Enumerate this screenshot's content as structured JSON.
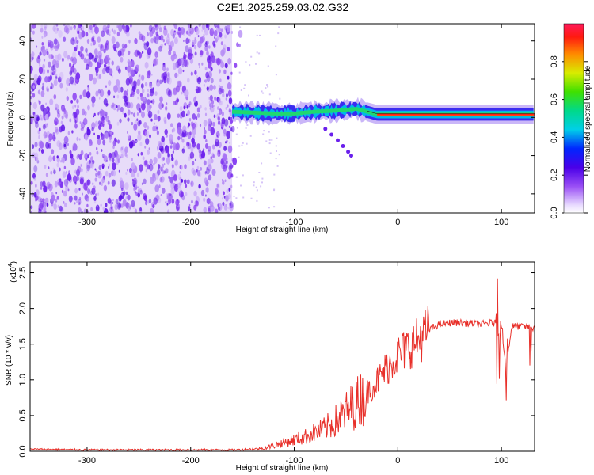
{
  "title": "C2E1.2025.259.03.02.G32",
  "chart_data": [
    {
      "type": "heatmap",
      "xlabel": "Height of straight line (km)",
      "ylabel": "Frequency (Hz)",
      "xlim": [
        -355,
        132
      ],
      "ylim": [
        -50,
        49
      ],
      "xticks": [
        -300,
        -200,
        -100,
        0,
        100
      ],
      "xtick_labels": [
        "-300",
        "-200",
        "-100",
        "0",
        "100"
      ],
      "yticks": [
        -40,
        -20,
        0,
        20,
        40
      ],
      "ytick_labels": [
        "-40",
        "-20",
        "0",
        "20",
        "40"
      ],
      "noise_region_x": [
        -355,
        -160
      ],
      "signal_track": {
        "x": [
          -160,
          -140,
          -120,
          -100,
          -80,
          -60,
          -40,
          -30,
          -20,
          0,
          20,
          40,
          60,
          80,
          100,
          120,
          132
        ],
        "freq": [
          3,
          2.5,
          2.0,
          2.0,
          3.0,
          3.5,
          4.5,
          3.0,
          1.5,
          1.5,
          1.5,
          1.5,
          1.5,
          1.5,
          1.5,
          1.5,
          1.5
        ]
      },
      "colorbar": {
        "label": "Normalized spectral amplitude",
        "range": [
          0,
          1
        ],
        "ticks": [
          0.0,
          0.2,
          0.4,
          0.6,
          0.8
        ],
        "tick_labels": [
          "0.0",
          "0.2",
          "0.4",
          "0.6",
          "0.8"
        ]
      },
      "grid": false
    },
    {
      "type": "line",
      "xlabel": "Height of straight line (km)",
      "ylabel": "SNR (10 * v/v)",
      "multiplier_label": "(x10",
      "multiplier_exp": "4",
      "xlim": [
        -355,
        132
      ],
      "ylim": [
        0,
        2.65
      ],
      "xticks": [
        -300,
        -200,
        -100,
        0,
        100
      ],
      "xtick_labels": [
        "-300",
        "-200",
        "-100",
        "0",
        "100"
      ],
      "yticks": [
        0.0,
        0.5,
        1.0,
        1.5,
        2.0,
        2.5
      ],
      "ytick_labels": [
        "0.0",
        "0.5",
        "1.0",
        "1.5",
        "2.0",
        "2.5"
      ],
      "series": [
        {
          "color": "#e8302a",
          "x": [
            -355,
            -300,
            -250,
            -200,
            -160,
            -140,
            -130,
            -120,
            -110,
            -100,
            -90,
            -80,
            -70,
            -60,
            -50,
            -40,
            -30,
            -20,
            -10,
            0,
            10,
            20,
            30,
            40,
            50,
            60,
            70,
            80,
            90,
            100,
            104,
            110,
            120,
            132
          ],
          "y": [
            0.03,
            0.02,
            0.02,
            0.02,
            0.02,
            0.03,
            0.04,
            0.08,
            0.12,
            0.16,
            0.2,
            0.26,
            0.32,
            0.42,
            0.55,
            0.68,
            0.82,
            0.98,
            1.18,
            1.35,
            1.45,
            1.56,
            1.7,
            1.78,
            1.8,
            1.8,
            1.79,
            1.78,
            1.8,
            1.78,
            1.15,
            1.75,
            1.75,
            1.73
          ]
        }
      ],
      "grid": false
    }
  ],
  "colors": {
    "series_line": "#e8302a",
    "axes": "#000000",
    "background": "#ffffff"
  }
}
